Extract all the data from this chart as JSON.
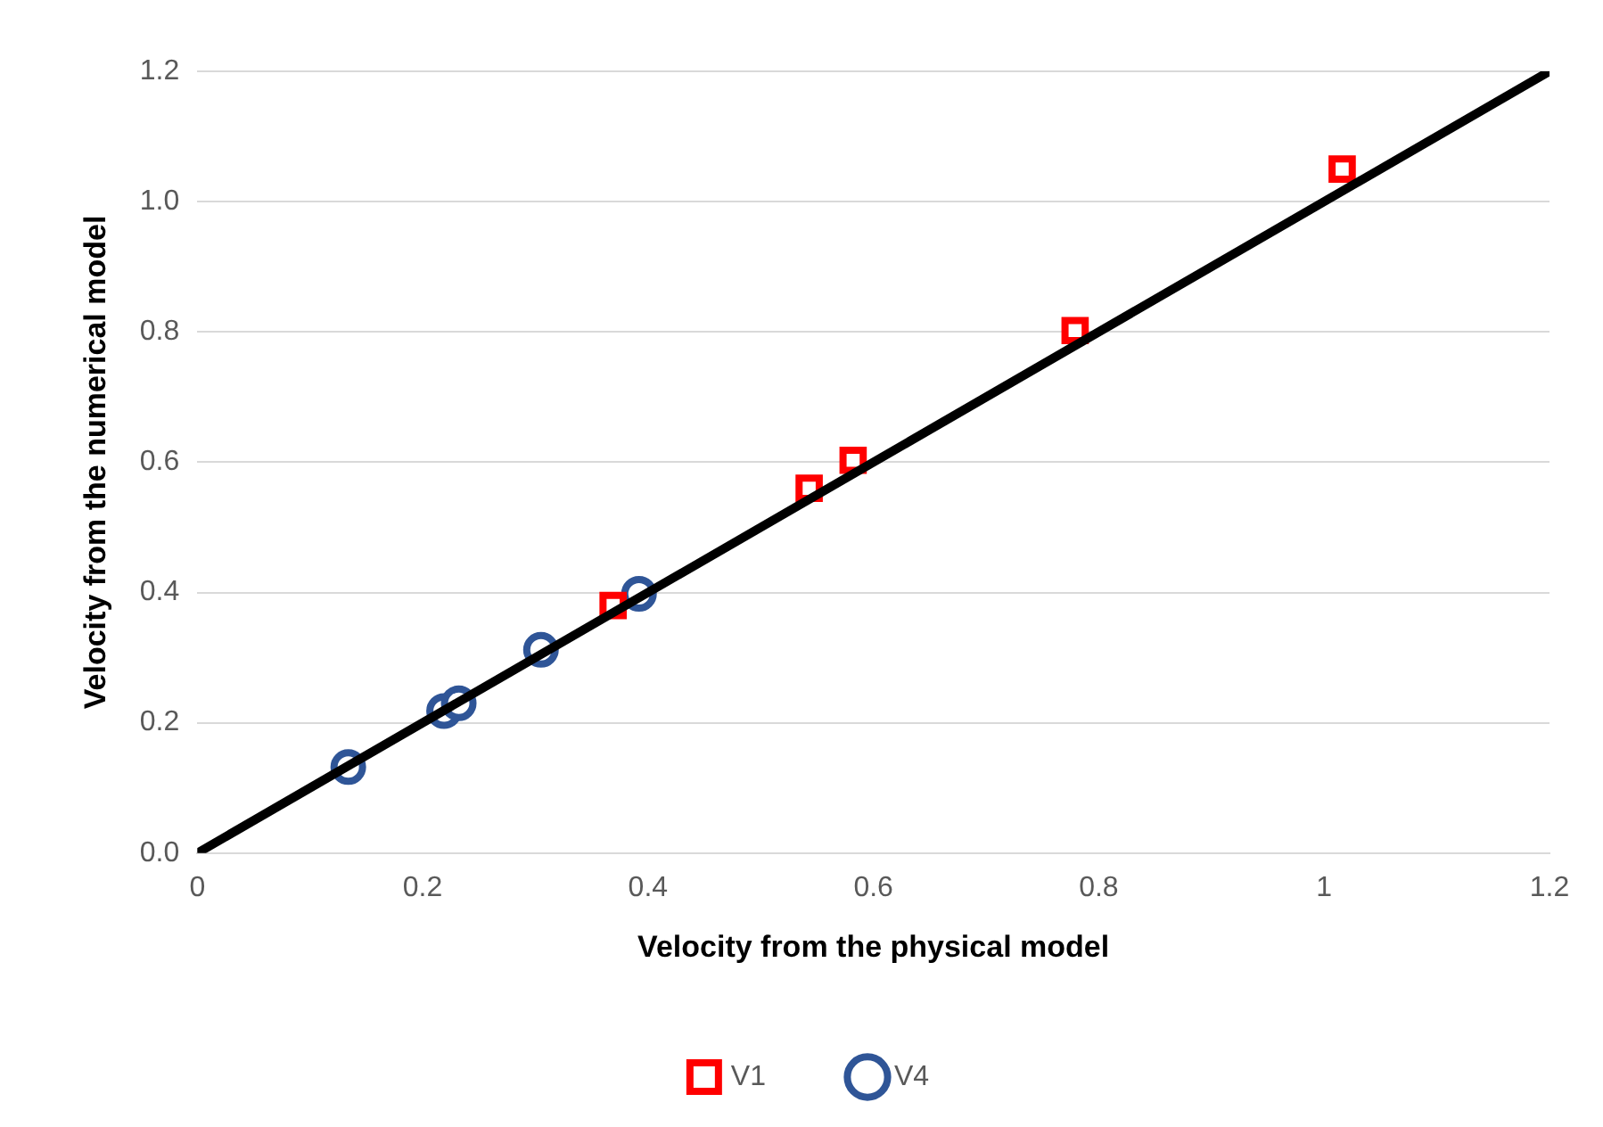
{
  "chart_data": {
    "type": "scatter",
    "xlabel": "Velocity from the physical model",
    "ylabel": "Velocity from the numerical model",
    "xlim": [
      0,
      1.2
    ],
    "xticks": [
      0,
      0.2,
      0.4,
      0.6,
      0.8,
      1,
      1.2
    ],
    "ylim": [
      0,
      1.2
    ],
    "yticks": [
      {
        "value": 0,
        "label": "0.0"
      },
      {
        "value": 0.2,
        "label": "0.2"
      },
      {
        "value": 0.4,
        "label": "0.4"
      },
      {
        "value": 0.6,
        "label": "0.6"
      },
      {
        "value": 0.8,
        "label": "0.8"
      },
      {
        "value": 1,
        "label": "1.0"
      },
      {
        "value": 1.2,
        "label": "1.2"
      }
    ],
    "grid": "y",
    "legend": "bottom",
    "series": [
      {
        "type": "line",
        "color": "#000000",
        "x": [
          0,
          1.2
        ],
        "values": [
          0,
          1.2
        ],
        "marker": "none",
        "line_style": "solid"
      },
      {
        "name": "V1",
        "color": "#ff0000",
        "marker": "square",
        "x": [
          0.369,
          0.543,
          0.582,
          0.779,
          1.016
        ],
        "values": [
          0.38,
          0.56,
          0.603,
          0.802,
          1.05
        ]
      },
      {
        "name": "V4",
        "color": "#2f5597",
        "marker": "circle",
        "x": [
          0.134,
          0.219,
          0.232,
          0.305,
          0.392
        ],
        "values": [
          0.132,
          0.218,
          0.23,
          0.312,
          0.398
        ]
      }
    ]
  }
}
